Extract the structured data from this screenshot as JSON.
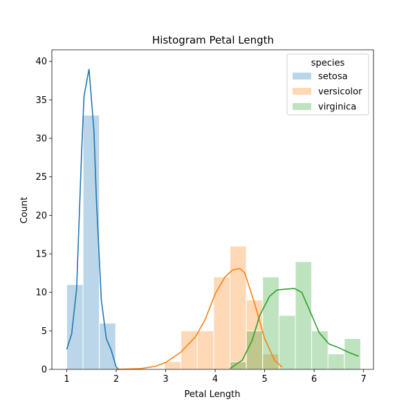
{
  "chart_data": {
    "type": "histogram",
    "title": "Histogram Petal Length",
    "xlabel": "Petal Length",
    "ylabel": "Count",
    "xlim": [
      0.7,
      7.2
    ],
    "ylim": [
      0,
      41.5
    ],
    "xticks": [
      1,
      2,
      3,
      4,
      5,
      6,
      7
    ],
    "yticks": [
      0,
      5,
      10,
      15,
      20,
      25,
      30,
      35,
      40
    ],
    "bin_edges": [
      1.0,
      1.33,
      1.66,
      1.99,
      2.32,
      2.65,
      2.98,
      3.31,
      3.64,
      3.97,
      4.3,
      4.63,
      4.96,
      5.29,
      5.62,
      5.95,
      6.28,
      6.61,
      6.94
    ],
    "legend": {
      "title": "species",
      "position": "top-right"
    },
    "series": [
      {
        "name": "setosa",
        "color": "#1f77b4",
        "counts": [
          11,
          33,
          6,
          0,
          0,
          0,
          0,
          0,
          0,
          0,
          0,
          0,
          0,
          0,
          0,
          0,
          0,
          0
        ],
        "kde": [
          [
            1.0,
            2.6
          ],
          [
            1.1,
            4.6
          ],
          [
            1.2,
            10.5
          ],
          [
            1.3,
            28
          ],
          [
            1.35,
            35.5
          ],
          [
            1.45,
            39
          ],
          [
            1.55,
            31
          ],
          [
            1.6,
            22
          ],
          [
            1.7,
            9
          ],
          [
            1.8,
            4
          ],
          [
            1.9,
            2.5
          ],
          [
            2.0,
            0.3
          ],
          [
            2.05,
            0
          ]
        ]
      },
      {
        "name": "versicolor",
        "color": "#ff7f0e",
        "counts": [
          0,
          0,
          0,
          0,
          0,
          0,
          1,
          5,
          5,
          12,
          16,
          9,
          2,
          0,
          0,
          0,
          0,
          0
        ],
        "kde": [
          [
            2.0,
            0
          ],
          [
            2.5,
            0.1
          ],
          [
            2.8,
            0.4
          ],
          [
            3.0,
            0.9
          ],
          [
            3.3,
            2.2
          ],
          [
            3.6,
            4.2
          ],
          [
            3.8,
            6.5
          ],
          [
            4.0,
            9.8
          ],
          [
            4.2,
            12
          ],
          [
            4.35,
            12.9
          ],
          [
            4.5,
            13.1
          ],
          [
            4.6,
            12.5
          ],
          [
            4.8,
            8.5
          ],
          [
            5.0,
            4
          ],
          [
            5.2,
            1.2
          ],
          [
            5.35,
            0.3
          ]
        ]
      },
      {
        "name": "virginica",
        "color": "#2ca02c",
        "counts": [
          0,
          0,
          0,
          0,
          0,
          0,
          0,
          0,
          0,
          0,
          1,
          5,
          12,
          7,
          14,
          5,
          2,
          4
        ],
        "kde": [
          [
            4.3,
            0.1
          ],
          [
            4.55,
            1.2
          ],
          [
            4.75,
            3.8
          ],
          [
            4.9,
            7
          ],
          [
            5.1,
            9.5
          ],
          [
            5.25,
            10.3
          ],
          [
            5.4,
            10.4
          ],
          [
            5.6,
            10.5
          ],
          [
            5.75,
            10
          ],
          [
            5.9,
            7.8
          ],
          [
            6.1,
            4.8
          ],
          [
            6.3,
            3.3
          ],
          [
            6.5,
            2.8
          ],
          [
            6.7,
            2.2
          ],
          [
            6.9,
            1.7
          ]
        ]
      }
    ]
  }
}
